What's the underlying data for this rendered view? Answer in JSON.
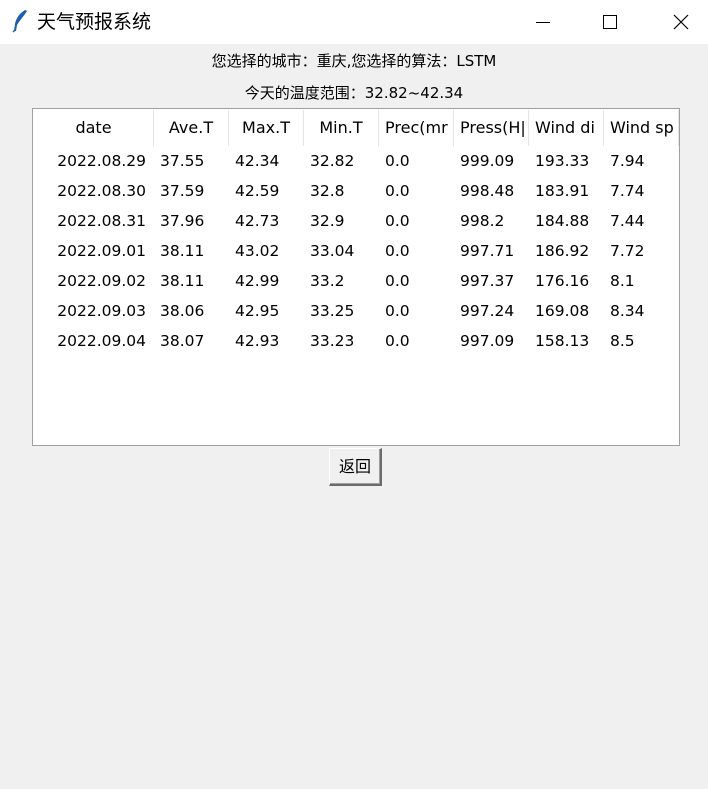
{
  "window": {
    "title": "天气预报系统",
    "icon": "feather-icon"
  },
  "info": {
    "selection": "您选择的城市：重庆,您选择的算法：LSTM",
    "temp_range": "今天的温度范围：32.82~42.34"
  },
  "table": {
    "columns": [
      "date",
      "Ave.T",
      "Max.T",
      "Min.T",
      "Prec(mr",
      "Press(H|",
      "Wind di",
      "Wind sp"
    ],
    "rows": [
      [
        "2022.08.29",
        "37.55",
        "42.34",
        "32.82",
        "0.0",
        "999.09",
        "193.33",
        "7.94"
      ],
      [
        "2022.08.30",
        "37.59",
        "42.59",
        "32.8",
        "0.0",
        "998.48",
        "183.91",
        "7.74"
      ],
      [
        "2022.08.31",
        "37.96",
        "42.73",
        "32.9",
        "0.0",
        "998.2",
        "184.88",
        "7.44"
      ],
      [
        "2022.09.01",
        "38.11",
        "43.02",
        "33.04",
        "0.0",
        "997.71",
        "186.92",
        "7.72"
      ],
      [
        "2022.09.02",
        "38.11",
        "42.99",
        "33.2",
        "0.0",
        "997.37",
        "176.16",
        "8.1"
      ],
      [
        "2022.09.03",
        "38.06",
        "42.95",
        "33.25",
        "0.0",
        "997.24",
        "169.08",
        "8.34"
      ],
      [
        "2022.09.04",
        "38.07",
        "42.93",
        "33.23",
        "0.0",
        "997.09",
        "158.13",
        "8.5"
      ]
    ]
  },
  "buttons": {
    "back_label": "返回"
  }
}
